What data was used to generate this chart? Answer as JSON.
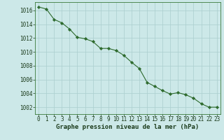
{
  "x": [
    0,
    1,
    2,
    3,
    4,
    5,
    6,
    7,
    8,
    9,
    10,
    11,
    12,
    13,
    14,
    15,
    16,
    17,
    18,
    19,
    20,
    21,
    22,
    23
  ],
  "y": [
    1016.5,
    1016.2,
    1014.7,
    1014.2,
    1013.3,
    1012.1,
    1011.9,
    1011.5,
    1010.5,
    1010.5,
    1010.2,
    1009.5,
    1008.5,
    1007.6,
    1005.6,
    1005.0,
    1004.4,
    1003.9,
    1004.1,
    1003.8,
    1003.3,
    1002.5,
    1002.0,
    1002.0
  ],
  "line_color": "#2d6a2d",
  "marker_color": "#2d6a2d",
  "bg_color": "#cce8e8",
  "grid_color": "#aacece",
  "xlabel": "Graphe pression niveau de la mer (hPa)",
  "ylabel_values": [
    1002,
    1004,
    1006,
    1008,
    1010,
    1012,
    1014,
    1016
  ],
  "ylim": [
    1001.0,
    1017.2
  ],
  "xlim": [
    -0.5,
    23.5
  ],
  "xtick_labels": [
    "0",
    "1",
    "2",
    "3",
    "4",
    "5",
    "6",
    "7",
    "8",
    "9",
    "10",
    "11",
    "12",
    "13",
    "14",
    "15",
    "16",
    "17",
    "18",
    "19",
    "20",
    "21",
    "22",
    "23"
  ],
  "tick_fontsize": 5.5,
  "label_fontsize": 6.5
}
